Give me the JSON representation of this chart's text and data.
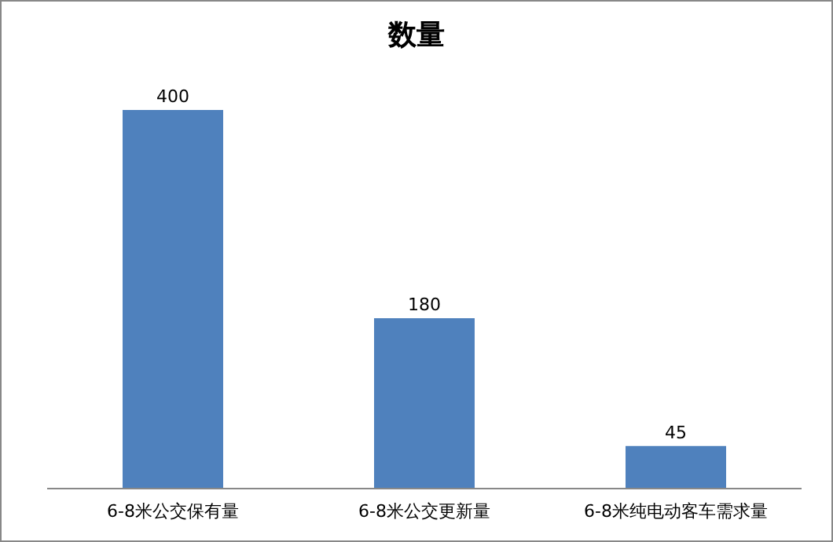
{
  "chart_data": {
    "type": "bar",
    "title": "数量",
    "categories": [
      "6-8米公交保有量",
      "6-8米公交更新量",
      "6-8米纯电动客车需求量"
    ],
    "values": [
      400,
      180,
      45
    ],
    "color": "#4f81bd",
    "data_labels": true
  }
}
